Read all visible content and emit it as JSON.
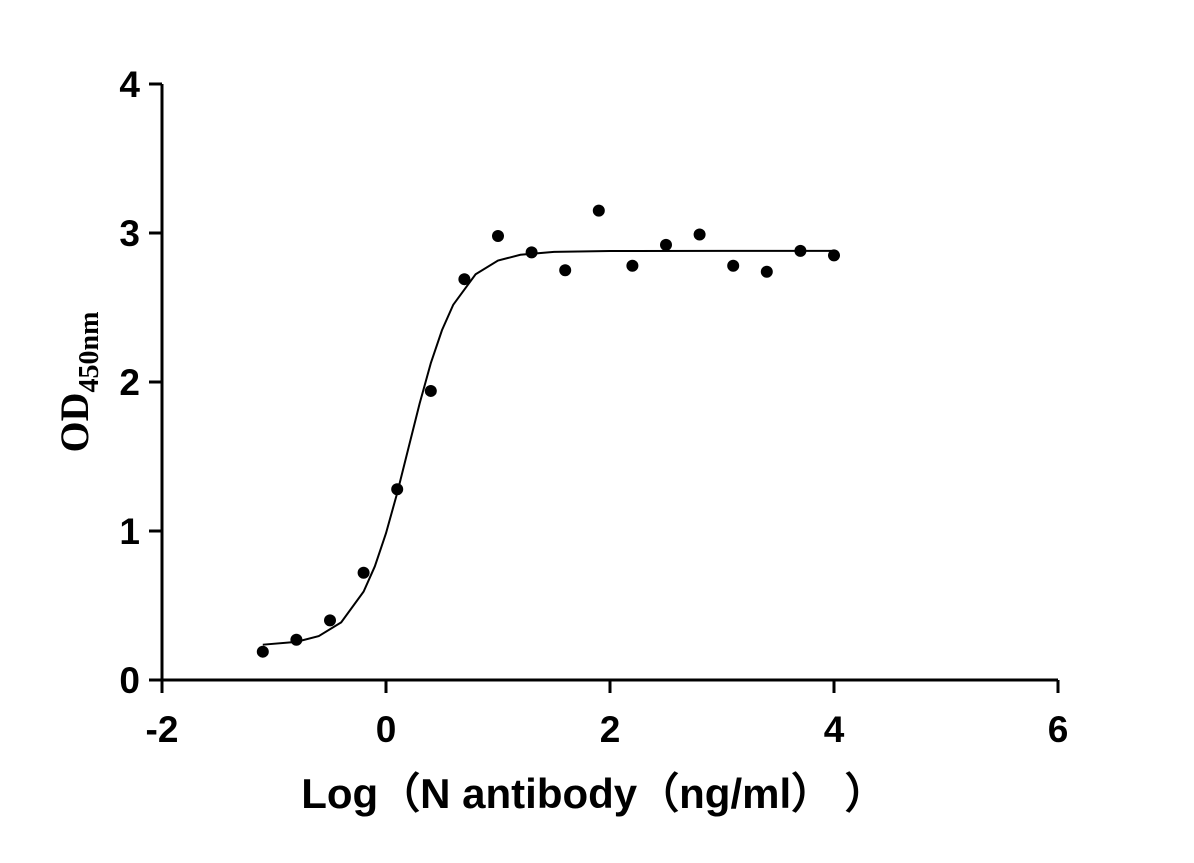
{
  "chart_data": {
    "type": "scatter",
    "xlabel": "Log（N antibody（ng/ml） ）",
    "ylabel": "OD",
    "ylabel_subscript": "450nm",
    "x": [
      -1.1,
      -0.8,
      -0.5,
      -0.2,
      0.1,
      0.4,
      0.7,
      1.0,
      1.3,
      1.6,
      1.9,
      2.2,
      2.5,
      2.8,
      3.1,
      3.4,
      3.7,
      4.0
    ],
    "values": [
      0.19,
      0.27,
      0.4,
      0.72,
      1.28,
      1.94,
      2.69,
      2.98,
      2.87,
      2.75,
      3.15,
      2.78,
      2.92,
      2.99,
      2.78,
      2.74,
      2.88,
      2.85
    ],
    "color": "#000000",
    "curve": {
      "x": [
        -1.1,
        -0.8,
        -0.6,
        -0.4,
        -0.2,
        -0.1,
        0,
        0.1,
        0.2,
        0.3,
        0.4,
        0.5,
        0.6,
        0.8,
        1.0,
        1.2,
        1.5,
        2,
        3,
        4
      ],
      "values": [
        0.237,
        0.256,
        0.295,
        0.387,
        0.593,
        0.762,
        0.985,
        1.255,
        1.555,
        1.855,
        2.126,
        2.348,
        2.518,
        2.723,
        2.815,
        2.854,
        2.873,
        2.879,
        2.88,
        2.88
      ]
    },
    "xlim": [
      -2,
      6
    ],
    "xticks": [
      -2,
      0,
      2,
      4,
      6
    ],
    "ylim": [
      0,
      4
    ],
    "yticks": [
      0,
      1,
      2,
      3,
      4
    ]
  }
}
